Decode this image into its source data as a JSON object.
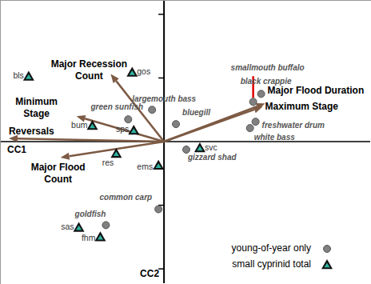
{
  "chart_data": {
    "type": "scatter",
    "xlabel": "CC1",
    "ylabel": "CC2",
    "xlim": [
      -2.05,
      2.59
    ],
    "ylim": [
      -1.78,
      1.77
    ],
    "xticks": [],
    "yticks": [
      -1.6,
      -0.8,
      0,
      0.8,
      1.6
    ],
    "tick_labels": false,
    "legend": "lower right",
    "series": [
      {
        "name": "young-of-year only",
        "type": "scatter",
        "marker": "circle",
        "color": "#808080",
        "labels": [
          "smallmouth buffalo",
          "black crappie",
          "freshwater drum",
          "white bass",
          "largemouth bass",
          "bluegill",
          "gizzard shad",
          "common carp",
          "goldfish",
          "green sunfish"
        ],
        "x": [
          1.12,
          1.22,
          1.15,
          1.08,
          -0.15,
          0.15,
          0.28,
          -0.07,
          -0.73,
          -0.45
        ],
        "y": [
          0.5,
          0.6,
          0.25,
          0.17,
          0.4,
          0.22,
          -0.1,
          -0.85,
          -1.05,
          0.28
        ]
      },
      {
        "name": "small cyprinid total",
        "type": "scatter",
        "marker": "triangle",
        "color": "#2fb3a0",
        "labels": [
          "bls",
          "gos",
          "bum",
          "sps",
          "res",
          "ems",
          "svc",
          "sas",
          "fhm"
        ],
        "x": [
          -1.7,
          -0.4,
          -0.9,
          -0.38,
          -0.6,
          -0.07,
          0.45,
          -1.07,
          -0.8
        ],
        "y": [
          0.82,
          0.87,
          0.2,
          0.14,
          -0.15,
          -0.3,
          -0.08,
          -1.08,
          -1.2
        ]
      },
      {
        "type": "vector",
        "color": "#7d5a44",
        "labels": [
          "Major Recession\nCount",
          "Minimum\nStage",
          "Reversals",
          "Major Flood\nCount",
          "Major Flood Duration",
          "Maximum Stage"
        ],
        "x": [
          -0.67,
          -1.1,
          -1.95,
          -1.3,
          1.27,
          1.24
        ],
        "y": [
          0.85,
          0.32,
          0.04,
          -0.2,
          0.48,
          0.44
        ]
      }
    ]
  }
}
